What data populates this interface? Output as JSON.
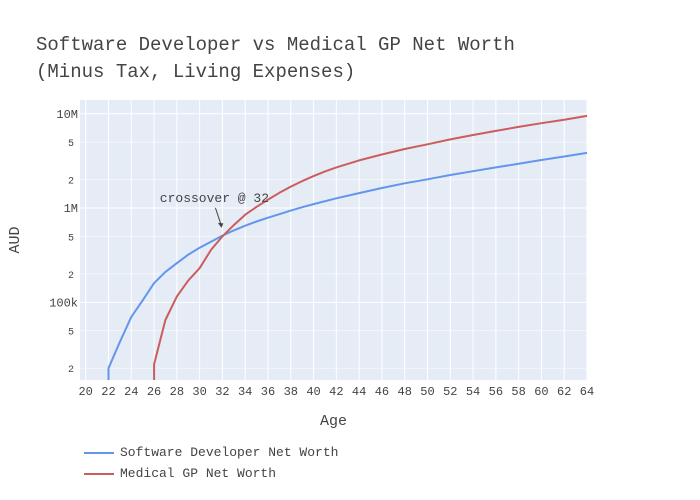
{
  "chart_data": {
    "type": "line",
    "title_line1": "Software Developer vs Medical GP Net Worth",
    "title_line2": "(Minus Tax, Living Expenses)",
    "xlabel": "Age",
    "ylabel": "AUD",
    "xlim": [
      19.5,
      64
    ],
    "ylim": [
      15000,
      14000000
    ],
    "yscale": "log",
    "x_ticks": [
      20,
      22,
      24,
      26,
      28,
      30,
      32,
      34,
      36,
      38,
      40,
      42,
      44,
      46,
      48,
      50,
      52,
      54,
      56,
      58,
      60,
      62,
      64
    ],
    "y_major_ticks": [
      {
        "value": 100000,
        "label": "100k"
      },
      {
        "value": 1000000,
        "label": "1M"
      },
      {
        "value": 10000000,
        "label": "10M"
      }
    ],
    "y_minor_ticks": [
      {
        "value": 20000,
        "label": "2"
      },
      {
        "value": 50000,
        "label": "5"
      },
      {
        "value": 200000,
        "label": "2"
      },
      {
        "value": 500000,
        "label": "5"
      },
      {
        "value": 2000000,
        "label": "2"
      },
      {
        "value": 5000000,
        "label": "5"
      }
    ],
    "grid": true,
    "legend_position": "bottom-left",
    "annotation": {
      "text": "crossover @ 32",
      "x": 32,
      "y": 520000
    },
    "series": [
      {
        "name": "Software Developer Net Worth",
        "color": "#6495ED",
        "x": [
          22,
          22,
          23,
          24,
          25,
          26,
          27,
          28,
          29,
          30,
          31,
          32,
          33,
          34,
          35,
          36,
          37,
          38,
          39,
          40,
          42,
          44,
          46,
          48,
          50,
          52,
          54,
          56,
          58,
          60,
          62,
          64
        ],
        "y": [
          15000,
          20000,
          38000,
          70000,
          105000,
          160000,
          210000,
          260000,
          320000,
          380000,
          440000,
          510000,
          580000,
          650000,
          720000,
          790000,
          860000,
          940000,
          1020000,
          1100000,
          1270000,
          1440000,
          1630000,
          1830000,
          2020000,
          2240000,
          2460000,
          2700000,
          2950000,
          3230000,
          3520000,
          3850000
        ]
      },
      {
        "name": "Medical GP Net Worth",
        "color": "#CD5C5C",
        "x": [
          26,
          26,
          27,
          28,
          29,
          30,
          31,
          32,
          33,
          34,
          35,
          36,
          37,
          38,
          39,
          40,
          41,
          42,
          44,
          46,
          48,
          50,
          52,
          54,
          56,
          58,
          60,
          62,
          64
        ],
        "y": [
          15000,
          22000,
          65000,
          115000,
          170000,
          230000,
          360000,
          500000,
          660000,
          850000,
          1030000,
          1230000,
          1450000,
          1690000,
          1930000,
          2180000,
          2450000,
          2700000,
          3200000,
          3700000,
          4230000,
          4750000,
          5350000,
          5950000,
          6580000,
          7250000,
          7950000,
          8650000,
          9500000
        ]
      }
    ]
  }
}
